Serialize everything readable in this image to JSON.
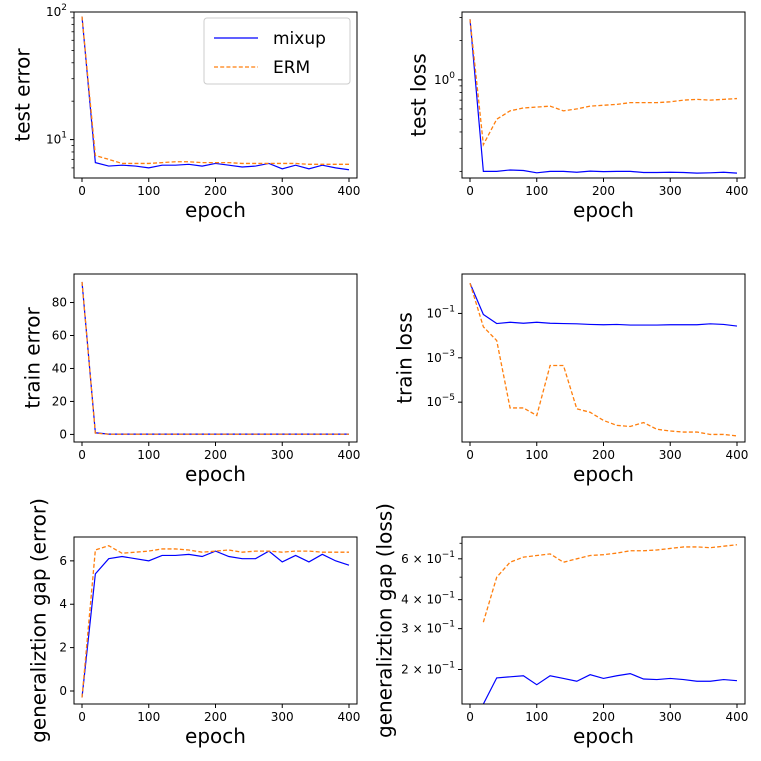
{
  "colors": {
    "mixup": "#0000ff",
    "erm": "#ff7f0e",
    "frame": "#000000",
    "background": "#ffffff"
  },
  "legend": {
    "location": "top-right of first panel",
    "entries": [
      "mixup",
      "ERM"
    ]
  },
  "chart_data": [
    {
      "type": "line",
      "id": "test-error",
      "title": "",
      "xlabel": "epoch",
      "ylabel": "test error",
      "yscale": "log",
      "xlim": [
        -12,
        412
      ],
      "ylim": [
        5.0,
        100
      ],
      "xticks": [
        0,
        100,
        200,
        300,
        400
      ],
      "xticklabels": [
        "0",
        "100",
        "200",
        "300",
        "400"
      ],
      "yticks": [
        10,
        100
      ],
      "yticklabels_base": [
        "10",
        "10"
      ],
      "yticklabels_exp": [
        "1",
        "2"
      ],
      "x": [
        0,
        20,
        40,
        60,
        80,
        100,
        120,
        140,
        160,
        180,
        200,
        220,
        240,
        260,
        280,
        300,
        320,
        340,
        360,
        380,
        400
      ],
      "series": [
        {
          "name": "mixup",
          "values": [
            92,
            6.6,
            6.2,
            6.3,
            6.2,
            6.0,
            6.3,
            6.3,
            6.4,
            6.2,
            6.5,
            6.3,
            6.1,
            6.2,
            6.5,
            5.9,
            6.3,
            5.9,
            6.3,
            6.0,
            5.8
          ]
        },
        {
          "name": "ERM",
          "values": [
            92,
            7.5,
            7.0,
            6.5,
            6.5,
            6.5,
            6.6,
            6.7,
            6.7,
            6.6,
            6.6,
            6.6,
            6.5,
            6.5,
            6.5,
            6.5,
            6.5,
            6.4,
            6.4,
            6.4,
            6.4
          ]
        }
      ]
    },
    {
      "type": "line",
      "id": "test-loss",
      "title": "",
      "xlabel": "epoch",
      "ylabel": "test loss",
      "yscale": "log",
      "xlim": [
        -12,
        412
      ],
      "ylim": [
        0.178,
        3.3
      ],
      "xticks": [
        0,
        100,
        200,
        300,
        400
      ],
      "xticklabels": [
        "0",
        "100",
        "200",
        "300",
        "400"
      ],
      "yticks": [
        1
      ],
      "yticklabels_base": [
        "10"
      ],
      "yticklabels_exp": [
        "0"
      ],
      "x": [
        0,
        20,
        40,
        60,
        80,
        100,
        120,
        140,
        160,
        180,
        200,
        220,
        240,
        260,
        280,
        300,
        320,
        340,
        360,
        380,
        400
      ],
      "series": [
        {
          "name": "mixup",
          "values": [
            2.9,
            0.2,
            0.2,
            0.205,
            0.203,
            0.195,
            0.2,
            0.2,
            0.197,
            0.201,
            0.199,
            0.2,
            0.2,
            0.196,
            0.196,
            0.197,
            0.196,
            0.194,
            0.195,
            0.197,
            0.194
          ]
        },
        {
          "name": "ERM",
          "values": [
            2.9,
            0.32,
            0.5,
            0.58,
            0.61,
            0.62,
            0.63,
            0.58,
            0.6,
            0.63,
            0.64,
            0.65,
            0.67,
            0.67,
            0.67,
            0.68,
            0.7,
            0.71,
            0.7,
            0.71,
            0.72
          ]
        }
      ]
    },
    {
      "type": "line",
      "id": "train-error",
      "title": "",
      "xlabel": "epoch",
      "ylabel": "train error",
      "yscale": "linear",
      "xlim": [
        -12,
        412
      ],
      "ylim": [
        -4.6,
        97.3
      ],
      "xticks": [
        0,
        100,
        200,
        300,
        400
      ],
      "xticklabels": [
        "0",
        "100",
        "200",
        "300",
        "400"
      ],
      "yticks": [
        0,
        20,
        40,
        60,
        80
      ],
      "yticklabels": [
        "0",
        "20",
        "40",
        "60",
        "80"
      ],
      "x": [
        0,
        20,
        40,
        60,
        80,
        100,
        120,
        140,
        160,
        180,
        200,
        220,
        240,
        260,
        280,
        300,
        320,
        340,
        360,
        380,
        400
      ],
      "series": [
        {
          "name": "mixup",
          "values": [
            92.5,
            1.0,
            0.2,
            0.2,
            0.2,
            0.2,
            0.2,
            0.2,
            0.2,
            0.2,
            0.2,
            0.2,
            0.2,
            0.2,
            0.2,
            0.2,
            0.2,
            0.2,
            0.2,
            0.2,
            0.2
          ]
        },
        {
          "name": "ERM",
          "values": [
            92.5,
            0.8,
            0.1,
            0.1,
            0.1,
            0.1,
            0.1,
            0.1,
            0.1,
            0.1,
            0.1,
            0.1,
            0.1,
            0.1,
            0.1,
            0.1,
            0.1,
            0.1,
            0.1,
            0.1,
            0.1
          ]
        }
      ]
    },
    {
      "type": "line",
      "id": "train-loss",
      "title": "",
      "xlabel": "epoch",
      "ylabel": "train loss",
      "yscale": "log",
      "xlim": [
        -12,
        412
      ],
      "ylim": [
        1.6e-07,
        6.0
      ],
      "xticks": [
        0,
        100,
        200,
        300,
        400
      ],
      "xticklabels": [
        "0",
        "100",
        "200",
        "300",
        "400"
      ],
      "yticks": [
        0.1,
        0.001,
        1e-05
      ],
      "yticklabels_base": [
        "10",
        "10",
        "10"
      ],
      "yticklabels_exp": [
        "−1",
        "−3",
        "−5"
      ],
      "x": [
        0,
        20,
        40,
        60,
        80,
        100,
        120,
        140,
        160,
        180,
        200,
        220,
        240,
        260,
        280,
        300,
        320,
        340,
        360,
        380,
        400
      ],
      "series": [
        {
          "name": "mixup",
          "values": [
            2.3,
            0.09,
            0.035,
            0.04,
            0.036,
            0.04,
            0.036,
            0.035,
            0.034,
            0.032,
            0.031,
            0.032,
            0.03,
            0.03,
            0.03,
            0.031,
            0.031,
            0.031,
            0.034,
            0.032,
            0.027
          ]
        },
        {
          "name": "ERM",
          "values": [
            2.3,
            0.025,
            0.006,
            5.5e-06,
            5.5e-06,
            2.5e-06,
            0.00045,
            0.00045,
            5e-06,
            3.5e-06,
            1.5e-06,
            9e-07,
            8e-07,
            1.2e-06,
            6e-07,
            5e-07,
            4.5e-07,
            4.5e-07,
            3.5e-07,
            3.5e-07,
            3e-07
          ]
        }
      ]
    },
    {
      "type": "line",
      "id": "gap-error",
      "title": "",
      "xlabel": "epoch",
      "ylabel": "generaliztion gap (error)",
      "yscale": "linear",
      "xlim": [
        -12,
        412
      ],
      "ylim": [
        -0.6,
        7.1
      ],
      "xticks": [
        0,
        100,
        200,
        300,
        400
      ],
      "xticklabels": [
        "0",
        "100",
        "200",
        "300",
        "400"
      ],
      "yticks": [
        0,
        2,
        4,
        6
      ],
      "yticklabels": [
        "0",
        "2",
        "4",
        "6"
      ],
      "x": [
        0,
        20,
        40,
        60,
        80,
        100,
        120,
        140,
        160,
        180,
        200,
        220,
        240,
        260,
        280,
        300,
        320,
        340,
        360,
        380,
        400
      ],
      "series": [
        {
          "name": "mixup",
          "values": [
            -0.3,
            5.4,
            6.1,
            6.2,
            6.1,
            6.0,
            6.25,
            6.25,
            6.3,
            6.2,
            6.45,
            6.2,
            6.1,
            6.1,
            6.45,
            5.95,
            6.25,
            5.95,
            6.3,
            6.0,
            5.8
          ]
        },
        {
          "name": "ERM",
          "values": [
            -0.3,
            6.5,
            6.7,
            6.35,
            6.4,
            6.45,
            6.55,
            6.55,
            6.5,
            6.4,
            6.45,
            6.5,
            6.4,
            6.45,
            6.45,
            6.4,
            6.45,
            6.45,
            6.4,
            6.4,
            6.4
          ]
        }
      ]
    },
    {
      "type": "line",
      "id": "gap-loss",
      "title": "",
      "xlabel": "epoch",
      "ylabel": "generaliztion gap (loss)",
      "yscale": "log",
      "xlim": [
        -12,
        412
      ],
      "ylim": [
        0.142,
        0.745
      ],
      "xticks": [
        0,
        100,
        200,
        300,
        400
      ],
      "xticklabels": [
        "0",
        "100",
        "200",
        "300",
        "400"
      ],
      "yticks": [
        0.6,
        0.4,
        0.3,
        0.2
      ],
      "yticklabels_base": [
        "6 × 10",
        "4 × 10",
        "3 × 10",
        "2 × 10"
      ],
      "yticklabels_exp": [
        "−1",
        "−1",
        "−1",
        "−1"
      ],
      "x": [
        20,
        40,
        60,
        80,
        100,
        120,
        140,
        160,
        180,
        200,
        220,
        240,
        260,
        280,
        300,
        320,
        340,
        360,
        380,
        400
      ],
      "series": [
        {
          "name": "mixup",
          "values": [
            0.142,
            0.184,
            0.186,
            0.188,
            0.172,
            0.188,
            0.183,
            0.178,
            0.19,
            0.183,
            0.188,
            0.192,
            0.182,
            0.181,
            0.183,
            0.181,
            0.178,
            0.178,
            0.181,
            0.179
          ]
        },
        {
          "name": "ERM",
          "values": [
            0.32,
            0.5,
            0.58,
            0.61,
            0.62,
            0.63,
            0.58,
            0.6,
            0.62,
            0.625,
            0.635,
            0.65,
            0.65,
            0.655,
            0.665,
            0.675,
            0.675,
            0.67,
            0.68,
            0.69
          ]
        }
      ]
    }
  ]
}
